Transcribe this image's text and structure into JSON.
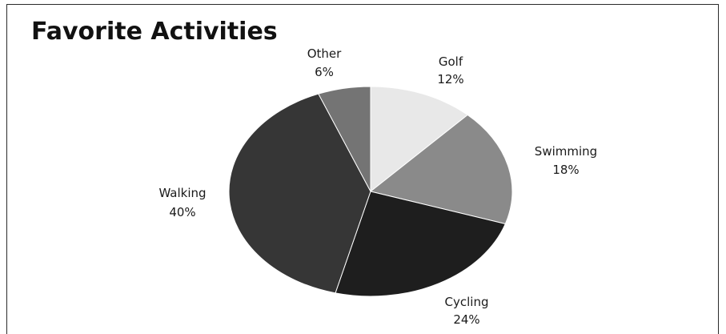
{
  "chart_data": {
    "type": "pie",
    "title": "Favorite Activities",
    "categories": [
      "Golf",
      "Swimming",
      "Cycling",
      "Walking",
      "Other"
    ],
    "values": [
      12,
      18,
      24,
      40,
      6
    ],
    "value_labels": [
      "12%",
      "18%",
      "24%",
      "40%",
      "6%"
    ],
    "colors": [
      "#e8e8e8",
      "#8a8a8a",
      "#1e1e1e",
      "#363636",
      "#747474"
    ],
    "start_angle": "12 o'clock",
    "direction": "clockwise",
    "legend": "none",
    "labels": "outside"
  }
}
